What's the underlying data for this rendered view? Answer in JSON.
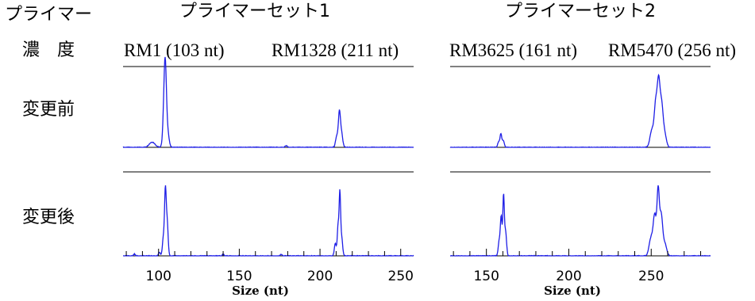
{
  "row_header": {
    "title_line1": "プライマー",
    "title_line2": "濃　度"
  },
  "set_titles": [
    "プライマーセット1",
    "プライマーセット2"
  ],
  "marker_labels": [
    [
      "RM1 (103 nt)",
      "RM1328 (211 nt)"
    ],
    [
      "RM3625 (161 nt)",
      "RM5470 (256 nt)"
    ]
  ],
  "row_labels": [
    "変更前",
    "変更後"
  ],
  "chart_data": [
    {
      "type": "line",
      "title": "プライマーセット1",
      "xlabel": "Size (nt)",
      "ylabel": "",
      "xlim": [
        78,
        258
      ],
      "x_ticks": [
        100,
        150,
        200,
        250
      ],
      "series": [
        {
          "name": "変更前",
          "peaks": [
            {
              "x": 96,
              "h": 0.09,
              "w": 1.8
            },
            {
              "x": 103.5,
              "h": 0.62,
              "w": 0.8
            },
            {
              "x": 104.2,
              "h": 1.0,
              "w": 0.7
            },
            {
              "x": 105.5,
              "h": 0.28,
              "w": 0.9
            },
            {
              "x": 179,
              "h": 0.03,
              "w": 0.6
            },
            {
              "x": 210.5,
              "h": 0.2,
              "w": 0.8
            },
            {
              "x": 212,
              "h": 0.52,
              "w": 0.6
            },
            {
              "x": 213.2,
              "h": 0.26,
              "w": 0.8
            }
          ]
        },
        {
          "name": "変更後",
          "peaks": [
            {
              "x": 85,
              "h": 0.03,
              "w": 0.5
            },
            {
              "x": 100.5,
              "h": 0.06,
              "w": 0.5
            },
            {
              "x": 103,
              "h": 0.3,
              "w": 0.6
            },
            {
              "x": 104.2,
              "h": 1.0,
              "w": 0.5
            },
            {
              "x": 105.3,
              "h": 0.55,
              "w": 0.6
            },
            {
              "x": 140,
              "h": 0.03,
              "w": 0.5
            },
            {
              "x": 176,
              "h": 0.03,
              "w": 0.5
            },
            {
              "x": 209.5,
              "h": 0.2,
              "w": 0.6
            },
            {
              "x": 211.2,
              "h": 0.48,
              "w": 0.5
            },
            {
              "x": 212.3,
              "h": 0.98,
              "w": 0.45
            },
            {
              "x": 213.4,
              "h": 0.3,
              "w": 0.6
            }
          ]
        }
      ]
    },
    {
      "type": "line",
      "title": "プライマーセット2",
      "xlabel": "Size (nt)",
      "ylabel": "",
      "xlim": [
        128,
        286
      ],
      "x_ticks": [
        150,
        200,
        250
      ],
      "series": [
        {
          "name": "変更前",
          "peaks": [
            {
              "x": 157.5,
              "h": 0.1,
              "w": 0.6
            },
            {
              "x": 158.8,
              "h": 0.22,
              "w": 0.5
            },
            {
              "x": 160.2,
              "h": 0.12,
              "w": 0.6
            },
            {
              "x": 250.5,
              "h": 0.3,
              "w": 1.2
            },
            {
              "x": 252.8,
              "h": 0.72,
              "w": 0.9
            },
            {
              "x": 254.5,
              "h": 1.0,
              "w": 0.8
            },
            {
              "x": 256.2,
              "h": 0.68,
              "w": 0.9
            },
            {
              "x": 258,
              "h": 0.25,
              "w": 1.1
            }
          ]
        },
        {
          "name": "変更後",
          "peaks": [
            {
              "x": 157.8,
              "h": 0.25,
              "w": 0.6
            },
            {
              "x": 159,
              "h": 0.62,
              "w": 0.5
            },
            {
              "x": 160.4,
              "h": 0.95,
              "w": 0.45
            },
            {
              "x": 161.6,
              "h": 0.4,
              "w": 0.6
            },
            {
              "x": 250,
              "h": 0.3,
              "w": 1.2
            },
            {
              "x": 252.2,
              "h": 0.62,
              "w": 0.9
            },
            {
              "x": 254.2,
              "h": 1.0,
              "w": 0.7
            },
            {
              "x": 256,
              "h": 0.65,
              "w": 0.9
            },
            {
              "x": 258.2,
              "h": 0.2,
              "w": 1.1
            }
          ]
        }
      ]
    }
  ]
}
